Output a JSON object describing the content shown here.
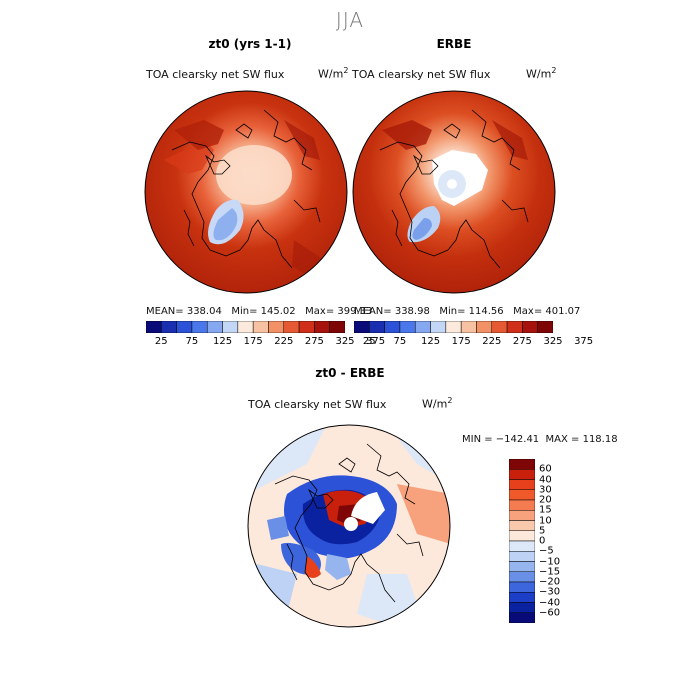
{
  "figure": {
    "title": "JJA"
  },
  "panels": [
    {
      "id": "model",
      "title": "zt0 (yrs 1-1)",
      "subtitle": "TOA clearsky net SW flux",
      "units_base": "W/m",
      "units_exp": "2",
      "stats": "MEAN= 338.04   Min= 145.02   Max= 399.33"
    },
    {
      "id": "obs",
      "title": "ERBE",
      "subtitle": "TOA clearsky net SW flux",
      "units_base": "W/m",
      "units_exp": "2",
      "stats": "MEAN= 338.98   Min= 114.56   Max= 401.07"
    },
    {
      "id": "diff",
      "title": "zt0 - ERBE",
      "subtitle": "TOA clearsky net SW flux",
      "units_base": "W/m",
      "units_exp": "2",
      "stats": "MIN = −142.41  MAX = 118.18"
    }
  ],
  "colorbar_abs": {
    "colors": [
      "#0a0a78",
      "#1a2fb0",
      "#2c52d8",
      "#4a78ea",
      "#86a8f0",
      "#c2d6f6",
      "#fbe9dc",
      "#f7c2a2",
      "#f29066",
      "#e65a33",
      "#d0301a",
      "#a8120c",
      "#7e0606"
    ],
    "labels": [
      "25",
      "75",
      "125",
      "175",
      "225",
      "275",
      "325",
      "375"
    ]
  },
  "colorbar_diff": {
    "colors": [
      "#7e0606",
      "#c8200d",
      "#e6401c",
      "#f05a2a",
      "#f47c50",
      "#f7a27c",
      "#f9c9ae",
      "#fde8dc",
      "#dce8f8",
      "#bdd2f4",
      "#96b4ee",
      "#6a8fe6",
      "#3e66dc",
      "#1d3fc8",
      "#0b22a0",
      "#080a78"
    ],
    "labels": [
      "60",
      "40",
      "30",
      "20",
      "15",
      "10",
      "5",
      "0",
      "−5",
      "−10",
      "−15",
      "−20",
      "−30",
      "−40",
      "−60"
    ]
  }
}
